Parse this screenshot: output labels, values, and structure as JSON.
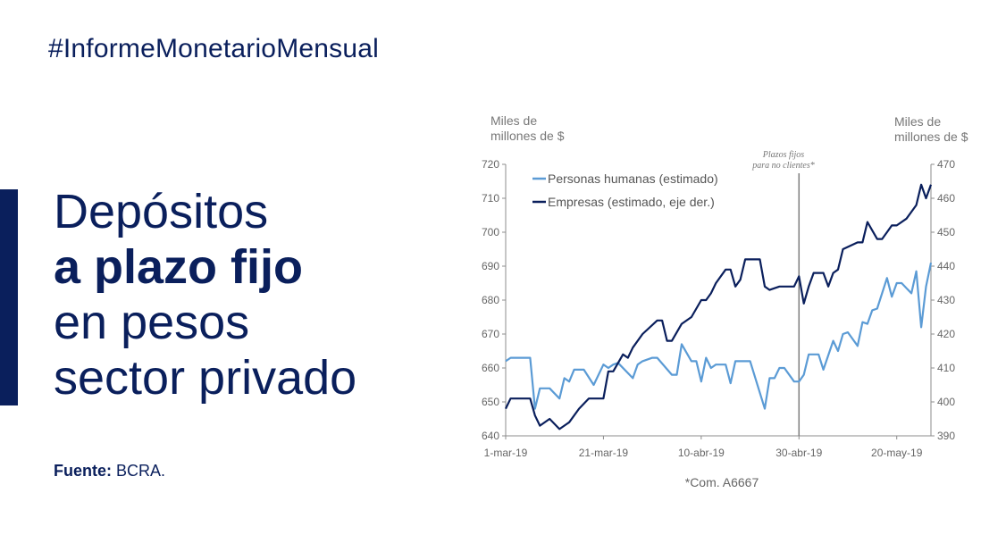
{
  "header": {
    "hashtag": "#InformeMonetarioMensual"
  },
  "title": {
    "line1": "Depósitos",
    "line2": "a plazo fijo",
    "line3": "en pesos",
    "line4": "sector privado"
  },
  "source": {
    "label": "Fuente:",
    "value": "BCRA."
  },
  "colors": {
    "brand": "#0a1f5c",
    "personas": "#5b9bd5",
    "empresas": "#0a1f5c",
    "marker": "#7f7f7f"
  },
  "chart_data": {
    "type": "line",
    "y_left_label_line1": "Miles de",
    "y_left_label_line2": "millones de $",
    "y_right_label_line1": "Miles de",
    "y_right_label_line2": "millones de $",
    "ylim_left": [
      640,
      720
    ],
    "ylim_right": [
      390,
      470
    ],
    "y_left_ticks": [
      "640",
      "650",
      "660",
      "670",
      "680",
      "690",
      "700",
      "710",
      "720"
    ],
    "y_right_ticks": [
      "390",
      "400",
      "410",
      "420",
      "430",
      "440",
      "450",
      "460",
      "470"
    ],
    "x_tick_labels": [
      "1-mar-19",
      "21-mar-19",
      "10-abr-19",
      "30-abr-19",
      "20-may-19"
    ],
    "x_range": [
      "2019-03-01",
      "2019-05-27"
    ],
    "annotation": {
      "date": "2019-04-30",
      "line1": "Plazos fijos",
      "line2": "para no clientes*"
    },
    "note": "*Com. A6667",
    "legend_position": "top-left",
    "series": [
      {
        "name": "Personas humanas (estimado)",
        "axis": "left",
        "x": [
          "2019-03-01",
          "2019-03-02",
          "2019-03-06",
          "2019-03-07",
          "2019-03-08",
          "2019-03-10",
          "2019-03-12",
          "2019-03-13",
          "2019-03-14",
          "2019-03-15",
          "2019-03-17",
          "2019-03-19",
          "2019-03-21",
          "2019-03-22",
          "2019-03-23",
          "2019-03-24",
          "2019-03-27",
          "2019-03-28",
          "2019-03-29",
          "2019-03-31",
          "2019-04-01",
          "2019-04-04",
          "2019-04-05",
          "2019-04-06",
          "2019-04-08",
          "2019-04-09",
          "2019-04-10",
          "2019-04-11",
          "2019-04-12",
          "2019-04-13",
          "2019-04-15",
          "2019-04-16",
          "2019-04-17",
          "2019-04-19",
          "2019-04-20",
          "2019-04-23",
          "2019-04-24",
          "2019-04-25",
          "2019-04-26",
          "2019-04-27",
          "2019-04-29",
          "2019-04-30",
          "2019-05-01",
          "2019-05-02",
          "2019-05-04",
          "2019-05-05",
          "2019-05-07",
          "2019-05-08",
          "2019-05-09",
          "2019-05-10",
          "2019-05-12",
          "2019-05-13",
          "2019-05-14",
          "2019-05-15",
          "2019-05-16",
          "2019-05-18",
          "2019-05-19",
          "2019-05-20",
          "2019-05-21",
          "2019-05-23",
          "2019-05-24",
          "2019-05-25",
          "2019-05-26",
          "2019-05-27"
        ],
        "values": [
          662,
          663,
          663,
          648,
          654,
          654,
          651,
          657,
          656,
          659.5,
          659.5,
          655,
          661,
          660,
          661,
          661.5,
          657,
          661,
          662,
          663,
          663,
          658,
          658,
          667,
          662,
          662,
          656,
          663,
          660,
          661,
          661,
          655.5,
          662,
          662,
          662,
          648,
          657,
          657,
          660,
          660,
          656,
          656,
          658,
          664,
          664,
          659.5,
          668,
          665,
          670,
          670.5,
          666.5,
          673.5,
          673,
          677,
          677.5,
          686.5,
          681,
          685,
          685,
          682,
          688.5,
          672,
          684,
          691
        ]
      },
      {
        "name": "Empresas (estimado, eje der.)",
        "axis": "right",
        "x": [
          "2019-03-01",
          "2019-03-02",
          "2019-03-06",
          "2019-03-07",
          "2019-03-08",
          "2019-03-10",
          "2019-03-12",
          "2019-03-14",
          "2019-03-16",
          "2019-03-18",
          "2019-03-21",
          "2019-03-22",
          "2019-03-23",
          "2019-03-25",
          "2019-03-26",
          "2019-03-27",
          "2019-03-29",
          "2019-04-01",
          "2019-04-02",
          "2019-04-03",
          "2019-04-04",
          "2019-04-06",
          "2019-04-08",
          "2019-04-10",
          "2019-04-11",
          "2019-04-12",
          "2019-04-13",
          "2019-04-15",
          "2019-04-16",
          "2019-04-17",
          "2019-04-18",
          "2019-04-19",
          "2019-04-22",
          "2019-04-23",
          "2019-04-24",
          "2019-04-26",
          "2019-04-28",
          "2019-04-29",
          "2019-04-30",
          "2019-05-01",
          "2019-05-02",
          "2019-05-03",
          "2019-05-05",
          "2019-05-06",
          "2019-05-07",
          "2019-05-08",
          "2019-05-09",
          "2019-05-12",
          "2019-05-13",
          "2019-05-14",
          "2019-05-16",
          "2019-05-17",
          "2019-05-18",
          "2019-05-19",
          "2019-05-20",
          "2019-05-22",
          "2019-05-24",
          "2019-05-25",
          "2019-05-26",
          "2019-05-27"
        ],
        "values": [
          398,
          401,
          401,
          396,
          393,
          395,
          392,
          394,
          398,
          401,
          401,
          409,
          409,
          414,
          413,
          416,
          420,
          424,
          424,
          418,
          418,
          423,
          425,
          430,
          430,
          432,
          435,
          439,
          439,
          434,
          436,
          442,
          442,
          434,
          433,
          434,
          434,
          434,
          437,
          429,
          434,
          438,
          438,
          434,
          438,
          439,
          445,
          447,
          447,
          453,
          448,
          448,
          450,
          452,
          452,
          454,
          458,
          464,
          460,
          464
        ]
      }
    ]
  }
}
